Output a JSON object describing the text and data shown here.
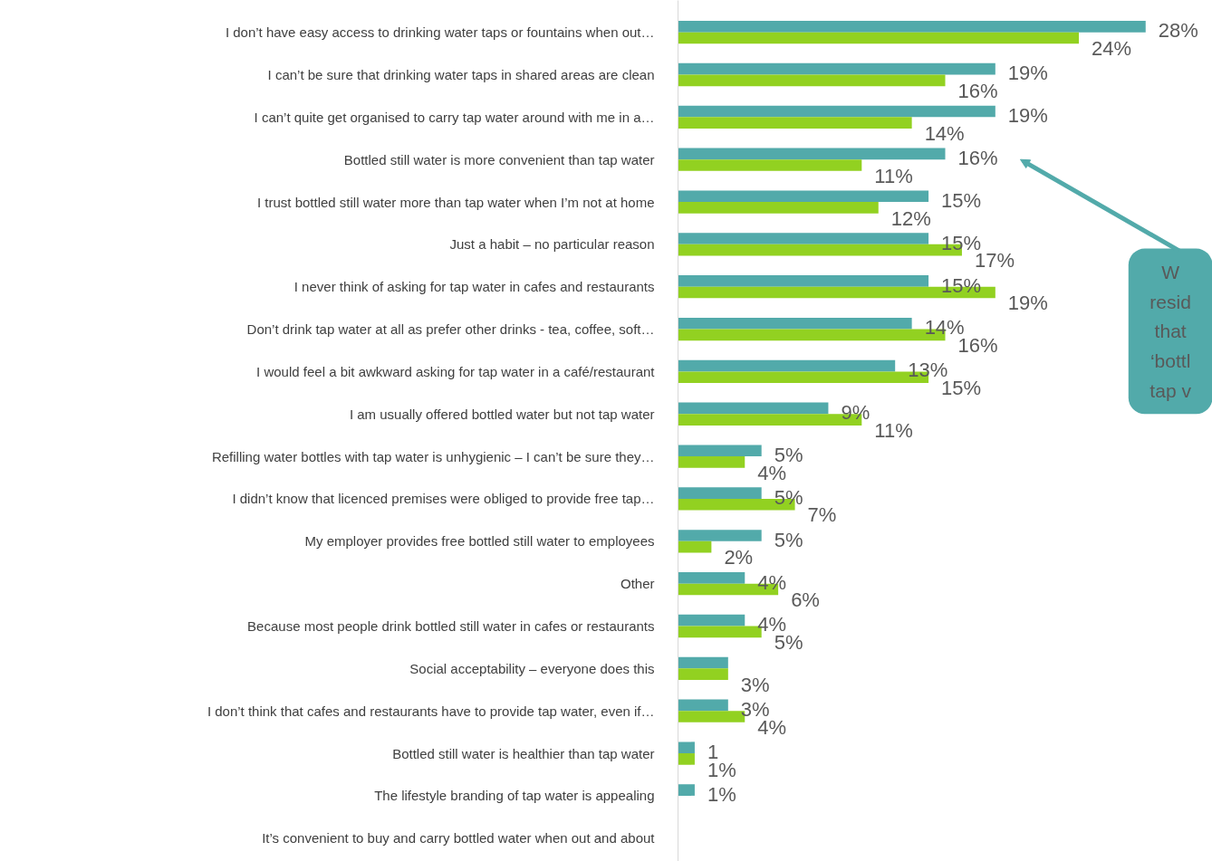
{
  "chart_data": {
    "type": "bar",
    "orientation": "horizontal",
    "categories": [
      "I don’t have easy access to drinking water taps or fountains when out…",
      "I can’t be sure that drinking water taps in shared areas are clean",
      "I can’t quite get organised to carry tap water around with me in a…",
      "Bottled still water is more convenient than tap water",
      "I trust bottled still water more than tap water when I’m not at home",
      "Just a habit – no particular reason",
      "I never think of asking for tap water in cafes and restaurants",
      "Don’t drink tap water at all as prefer other drinks - tea, coffee, soft…",
      "I would feel a bit awkward asking for tap water in a café/restaurant",
      "I am usually offered bottled water but not tap water",
      "Refilling water bottles with tap water is unhygienic – I can’t be sure they…",
      "I didn’t know that licenced premises were obliged to provide free tap…",
      "My employer provides free bottled still water to employees",
      "Other",
      "Because most people drink bottled still water in cafes or restaurants",
      "Social acceptability – everyone does this",
      "I don’t think that cafes and restaurants have to provide tap water, even if…",
      "Bottled still water is healthier than tap water",
      "The lifestyle branding of tap water is appealing",
      "It’s convenient to buy and carry bottled water when out and about"
    ],
    "series": [
      {
        "color": "#52aaaa",
        "values": [
          28,
          19,
          19,
          16,
          15,
          15,
          15,
          14,
          13,
          9,
          5,
          5,
          5,
          4,
          4,
          3,
          3,
          1,
          1,
          null
        ],
        "value_labels": [
          "28%",
          "19%",
          "19%",
          "16%",
          "15%",
          "15%",
          "15%",
          "14%",
          "13%",
          "9%",
          "5%",
          "5%",
          "5%",
          "4%",
          "4%",
          null,
          "3%",
          "1",
          "1%",
          null
        ]
      },
      {
        "color": "#92d121",
        "values": [
          24,
          16,
          14,
          11,
          12,
          17,
          19,
          16,
          15,
          11,
          4,
          7,
          2,
          6,
          5,
          3,
          4,
          1,
          null,
          null
        ],
        "value_labels": [
          "24%",
          "16%",
          "14%",
          "11%",
          "12%",
          "17%",
          "19%",
          "16%",
          "15%",
          "11%",
          "4%",
          "7%",
          "2%",
          "6%",
          "5%",
          "3%",
          "4%",
          "1%",
          null,
          null
        ]
      }
    ],
    "xlim": [
      0,
      32
    ],
    "tick_labels": "y",
    "grid": false,
    "annotations": [
      "W\nresid\nthat\n‘bottl\ntap v"
    ]
  }
}
